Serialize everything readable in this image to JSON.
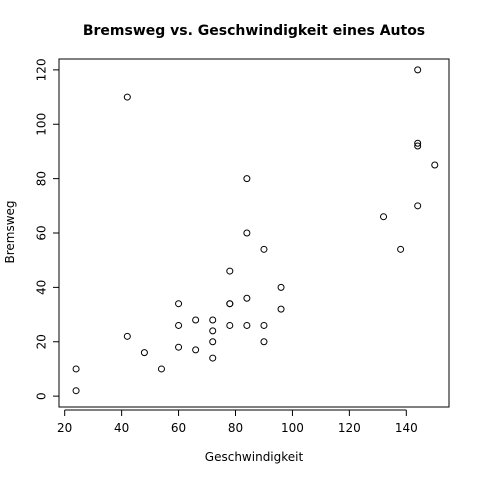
{
  "chart_data": {
    "type": "scatter",
    "title": "Bremsweg vs. Geschwindigkeit eines Autos",
    "xlabel": "Geschwindigkeit",
    "ylabel": "Bremsweg",
    "xlim": [
      18,
      155
    ],
    "ylim": [
      -4,
      124
    ],
    "xticks": [
      20,
      40,
      60,
      80,
      100,
      120,
      140
    ],
    "yticks": [
      0,
      20,
      40,
      60,
      80,
      100,
      120
    ],
    "grid": false,
    "legend": "none",
    "marker": "open-circle",
    "colors": {
      "marker": "#000000",
      "axis": "#000000",
      "background": "#ffffff"
    },
    "series": [
      {
        "points": [
          {
            "x": 24,
            "y": 2
          },
          {
            "x": 24,
            "y": 10
          },
          {
            "x": 42,
            "y": 110
          },
          {
            "x": 42,
            "y": 22
          },
          {
            "x": 48,
            "y": 16
          },
          {
            "x": 54,
            "y": 10
          },
          {
            "x": 60,
            "y": 34
          },
          {
            "x": 60,
            "y": 26
          },
          {
            "x": 60,
            "y": 18
          },
          {
            "x": 66,
            "y": 28
          },
          {
            "x": 66,
            "y": 17
          },
          {
            "x": 72,
            "y": 28
          },
          {
            "x": 72,
            "y": 24
          },
          {
            "x": 72,
            "y": 20
          },
          {
            "x": 72,
            "y": 14
          },
          {
            "x": 78,
            "y": 46
          },
          {
            "x": 78,
            "y": 34
          },
          {
            "x": 78,
            "y": 34
          },
          {
            "x": 78,
            "y": 26
          },
          {
            "x": 84,
            "y": 80
          },
          {
            "x": 84,
            "y": 60
          },
          {
            "x": 84,
            "y": 36
          },
          {
            "x": 84,
            "y": 26
          },
          {
            "x": 90,
            "y": 54
          },
          {
            "x": 90,
            "y": 26
          },
          {
            "x": 90,
            "y": 20
          },
          {
            "x": 96,
            "y": 40
          },
          {
            "x": 96,
            "y": 32
          },
          {
            "x": 132,
            "y": 66
          },
          {
            "x": 138,
            "y": 54
          },
          {
            "x": 144,
            "y": 120
          },
          {
            "x": 144,
            "y": 93
          },
          {
            "x": 144,
            "y": 92
          },
          {
            "x": 144,
            "y": 70
          },
          {
            "x": 150,
            "y": 85
          }
        ]
      }
    ]
  }
}
